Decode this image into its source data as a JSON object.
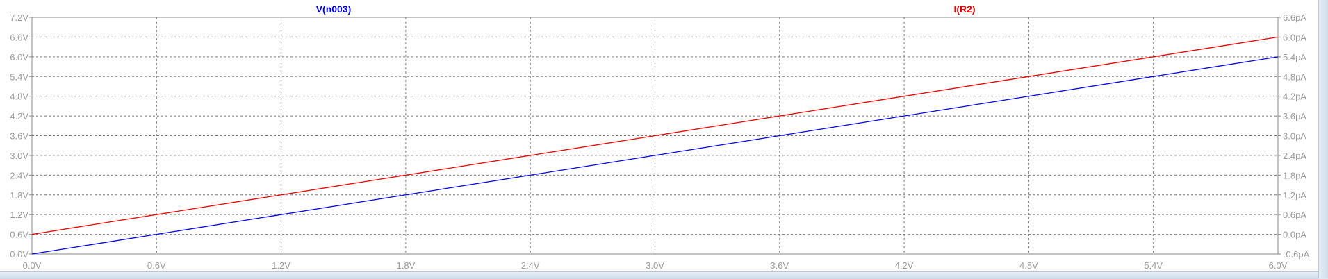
{
  "window": {
    "type": "waveform-viewer"
  },
  "chart_data": {
    "type": "line",
    "grid": true,
    "x": {
      "min": 0,
      "max": 6,
      "ticks": [
        0,
        0.6,
        1.2,
        1.8,
        2.4,
        3.0,
        3.6,
        4.2,
        4.8,
        5.4,
        6.0
      ],
      "tick_labels": [
        "0.0V",
        "0.6V",
        "1.2V",
        "1.8V",
        "2.4V",
        "3.0V",
        "3.6V",
        "4.2V",
        "4.8V",
        "5.4V",
        "6.0V"
      ]
    },
    "y_left": {
      "min": 0,
      "max": 7.2,
      "ticks": [
        0,
        0.6,
        1.2,
        1.8,
        2.4,
        3.0,
        3.6,
        4.2,
        4.8,
        5.4,
        6.0,
        6.6,
        7.2
      ],
      "tick_labels": [
        "0.0V",
        "0.6V",
        "1.2V",
        "1.8V",
        "2.4V",
        "3.0V",
        "3.6V",
        "4.2V",
        "4.8V",
        "5.4V",
        "6.0V",
        "6.6V",
        "7.2V"
      ]
    },
    "y_right": {
      "min": -0.6,
      "max": 6.6,
      "ticks": [
        -0.6,
        0,
        0.6,
        1.2,
        1.8,
        2.4,
        3.0,
        3.6,
        4.2,
        4.8,
        5.4,
        6.0,
        6.6
      ],
      "tick_labels": [
        "-0.6pA",
        "0.0pA",
        "0.6pA",
        "1.2pA",
        "1.8pA",
        "2.4pA",
        "3.0pA",
        "3.6pA",
        "4.2pA",
        "4.8pA",
        "5.4pA",
        "6.0pA",
        "6.6pA"
      ]
    },
    "series": [
      {
        "name": "V(n003)",
        "axis": "left",
        "color": "#0000ee",
        "x": [
          0,
          6.0
        ],
        "y": [
          0,
          6.0
        ]
      },
      {
        "name": "I(R2)",
        "axis": "right",
        "color": "#ee0000",
        "x": [
          0,
          6.0
        ],
        "y": [
          0,
          6.0
        ]
      }
    ]
  }
}
